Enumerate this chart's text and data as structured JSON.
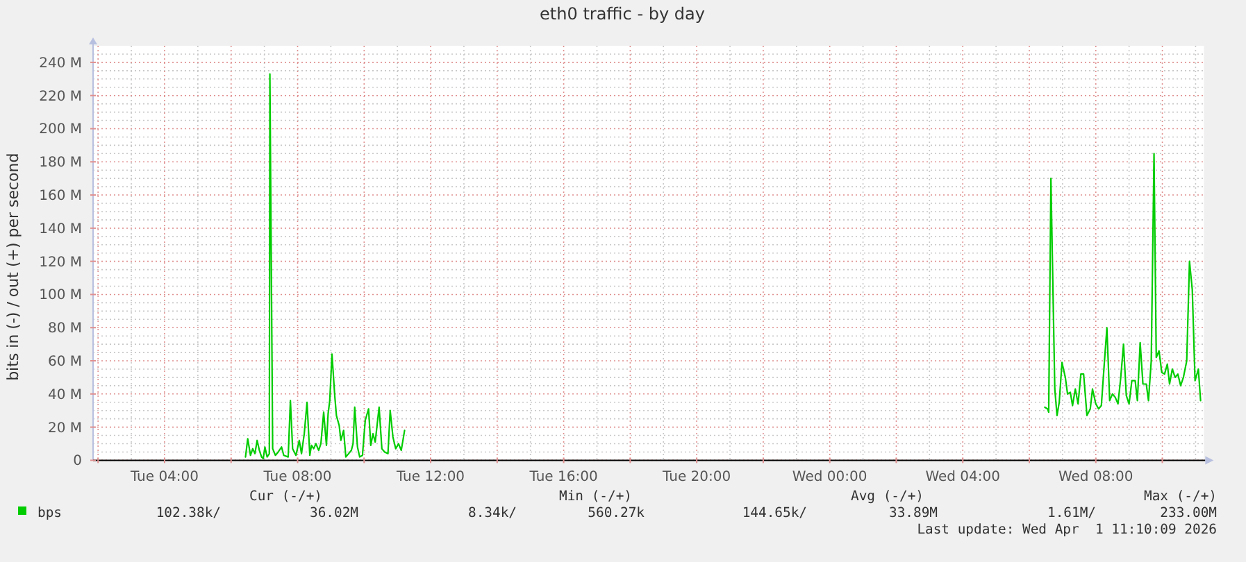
{
  "chart_data": {
    "type": "line",
    "title": "eth0 traffic - by day",
    "ylabel": "bits in (-) / out (+) per second",
    "xlim": [
      "2026-03-31T01:51",
      "2026-04-01T11:15"
    ],
    "xticks": [
      {
        "value": "2026-03-31T02:00",
        "label": null
      },
      {
        "value": "2026-03-31T04:00",
        "label": "Tue 04:00"
      },
      {
        "value": "2026-03-31T06:00",
        "label": null
      },
      {
        "value": "2026-03-31T08:00",
        "label": "Tue 08:00"
      },
      {
        "value": "2026-03-31T10:00",
        "label": null
      },
      {
        "value": "2026-03-31T12:00",
        "label": "Tue 12:00"
      },
      {
        "value": "2026-03-31T14:00",
        "label": null
      },
      {
        "value": "2026-03-31T16:00",
        "label": "Tue 16:00"
      },
      {
        "value": "2026-03-31T18:00",
        "label": null
      },
      {
        "value": "2026-03-31T20:00",
        "label": "Tue 20:00"
      },
      {
        "value": "2026-03-31T22:00",
        "label": null
      },
      {
        "value": "2026-04-01T00:00",
        "label": "Wed 00:00"
      },
      {
        "value": "2026-04-01T02:00",
        "label": null
      },
      {
        "value": "2026-04-01T04:00",
        "label": "Wed 04:00"
      },
      {
        "value": "2026-04-01T06:00",
        "label": null
      },
      {
        "value": "2026-04-01T08:00",
        "label": "Wed 08:00"
      },
      {
        "value": "2026-04-01T10:00",
        "label": null
      }
    ],
    "ylim": [
      0,
      250
    ],
    "yticks": [
      0,
      {
        "value": 20,
        "label": "20 M"
      },
      {
        "value": 40,
        "label": "40 M"
      },
      {
        "value": 60,
        "label": "60 M"
      },
      {
        "value": 80,
        "label": "80 M"
      },
      {
        "value": 100,
        "label": "100 M"
      },
      {
        "value": 120,
        "label": "120 M"
      },
      {
        "value": 140,
        "label": "140 M"
      },
      {
        "value": 160,
        "label": "160 M"
      },
      {
        "value": 180,
        "label": "180 M"
      },
      {
        "value": 200,
        "label": "200 M"
      },
      {
        "value": 220,
        "label": "220 M"
      },
      {
        "value": 240,
        "label": "240 M"
      }
    ],
    "grid": true,
    "legend": "bottom left",
    "series": [
      {
        "name": "bps",
        "color": "#00cc00",
        "x": [
          "2026-03-31T06:26",
          "2026-03-31T06:30",
          "2026-03-31T06:35",
          "2026-03-31T06:39",
          "2026-03-31T06:43",
          "2026-03-31T06:47",
          "2026-03-31T06:51",
          "2026-03-31T06:55",
          "2026-03-31T06:58",
          "2026-03-31T07:01",
          "2026-03-31T07:05",
          "2026-03-31T07:09",
          "2026-03-31T07:10",
          "2026-03-31T07:15",
          "2026-03-31T07:20",
          "2026-03-31T07:25",
          "2026-03-31T07:31",
          "2026-03-31T07:35",
          "2026-03-31T07:43",
          "2026-03-31T07:47",
          "2026-03-31T07:51",
          "2026-03-31T07:57",
          "2026-03-31T08:03",
          "2026-03-31T08:07",
          "2026-03-31T08:12",
          "2026-03-31T08:17",
          "2026-03-31T08:22",
          "2026-03-31T08:25",
          "2026-03-31T08:29",
          "2026-03-31T08:33",
          "2026-03-31T08:38",
          "2026-03-31T08:42",
          "2026-03-31T08:47",
          "2026-03-31T08:52",
          "2026-03-31T08:55",
          "2026-03-31T08:58",
          "2026-03-31T09:02",
          "2026-03-31T09:07",
          "2026-03-31T09:10",
          "2026-03-31T09:15",
          "2026-03-31T09:18",
          "2026-03-31T09:23",
          "2026-03-31T09:27",
          "2026-03-31T09:32",
          "2026-03-31T09:37",
          "2026-03-31T09:40",
          "2026-03-31T09:43",
          "2026-03-31T09:48",
          "2026-03-31T09:52",
          "2026-03-31T09:57",
          "2026-03-31T10:02",
          "2026-03-31T10:08",
          "2026-03-31T10:12",
          "2026-03-31T10:16",
          "2026-03-31T10:20",
          "2026-03-31T10:27",
          "2026-03-31T10:32",
          "2026-03-31T10:37",
          "2026-03-31T10:43",
          "2026-03-31T10:47",
          "2026-03-31T10:52",
          "2026-03-31T10:57",
          "2026-03-31T11:02",
          "2026-03-31T11:07",
          "2026-03-31T11:13",
          "2026-03-31T20:00",
          "2026-04-01T06:28",
          "2026-04-01T06:33",
          "2026-04-01T06:35",
          "2026-04-01T06:39",
          "2026-04-01T06:46",
          "2026-04-01T06:50",
          "2026-04-01T06:54",
          "2026-04-01T06:59",
          "2026-04-01T07:05",
          "2026-04-01T07:09",
          "2026-04-01T07:14",
          "2026-04-01T07:18",
          "2026-04-01T07:23",
          "2026-04-01T07:28",
          "2026-04-01T07:33",
          "2026-04-01T07:38",
          "2026-04-01T07:44",
          "2026-04-01T07:50",
          "2026-04-01T07:54",
          "2026-04-01T08:00",
          "2026-04-01T08:05",
          "2026-04-01T08:10",
          "2026-04-01T08:15",
          "2026-04-01T08:20",
          "2026-04-01T08:25",
          "2026-04-01T08:30",
          "2026-04-01T08:35",
          "2026-04-01T08:40",
          "2026-04-01T08:45",
          "2026-04-01T08:50",
          "2026-04-01T08:55",
          "2026-04-01T09:00",
          "2026-04-01T09:05",
          "2026-04-01T09:11",
          "2026-04-01T09:15",
          "2026-04-01T09:20",
          "2026-04-01T09:25",
          "2026-04-01T09:31",
          "2026-04-01T09:35",
          "2026-04-01T09:40",
          "2026-04-01T09:45",
          "2026-04-01T09:49",
          "2026-04-01T09:54",
          "2026-04-01T09:59",
          "2026-04-01T10:04",
          "2026-04-01T10:09",
          "2026-04-01T10:13",
          "2026-04-01T10:18",
          "2026-04-01T10:23",
          "2026-04-01T10:28",
          "2026-04-01T10:33",
          "2026-04-01T10:38",
          "2026-04-01T10:44",
          "2026-04-01T10:49",
          "2026-04-01T10:54",
          "2026-04-01T10:59",
          "2026-04-01T11:05",
          "2026-04-01T11:09"
        ],
        "values": [
          2,
          13,
          3,
          7,
          4,
          12,
          6,
          2,
          1,
          8,
          2,
          4,
          233,
          7,
          3,
          5,
          8,
          3,
          2,
          36,
          7,
          3,
          12,
          4,
          16,
          35,
          3,
          9,
          7,
          10,
          6,
          10,
          29,
          9,
          28,
          36,
          64,
          39,
          27,
          21,
          12,
          18,
          2,
          4,
          6,
          10,
          32,
          8,
          2,
          3,
          24,
          31,
          9,
          16,
          11,
          32,
          7,
          5,
          4,
          30,
          14,
          7,
          10,
          6,
          18,
          null,
          32,
          31,
          29,
          170,
          43,
          27,
          35,
          59,
          50,
          40,
          41,
          33,
          43,
          34,
          52,
          52,
          27,
          31,
          43,
          34,
          31,
          33,
          57,
          80,
          36,
          40,
          38,
          34,
          50,
          70,
          39,
          34,
          48,
          48,
          36,
          71,
          46,
          46,
          36,
          60,
          185,
          62,
          66,
          53,
          52,
          58,
          46,
          55,
          50,
          52,
          45,
          50,
          60,
          120,
          103,
          48,
          55,
          36
        ]
      }
    ],
    "annotations": [
      "Cur (-/+)",
      "Min (-/+)",
      "Avg (-/+)",
      "Max (-/+)",
      "102.38k/",
      "36.02M",
      "8.34k/",
      "560.27k",
      "144.65k/",
      "33.89M",
      "1.61M/",
      "233.00M",
      "Last update: Wed Apr  1 11:10:09 2026"
    ]
  }
}
